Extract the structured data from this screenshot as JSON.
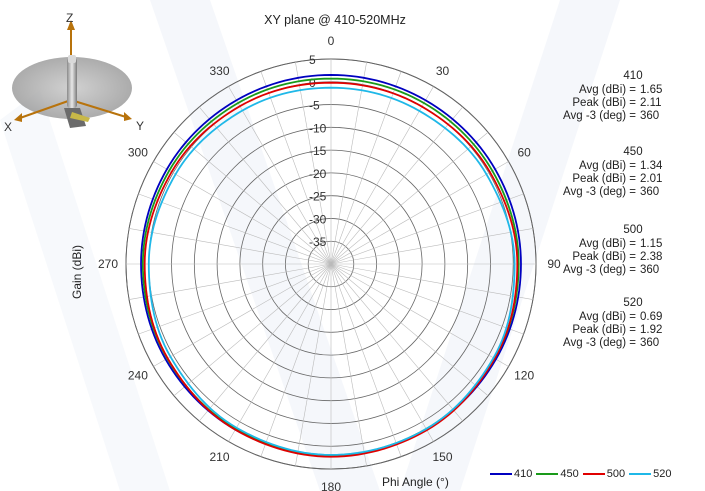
{
  "chart_data": {
    "type": "polar",
    "title": "XY plane @ 410-520MHz",
    "xlabel": "Phi  Angle (°)",
    "ylabel": "Gain  (dBi)",
    "radial_range": [
      -40,
      5
    ],
    "radial_ticks": [
      "5",
      "0",
      "-5",
      "-10",
      "-15",
      "-20",
      "-25",
      "-30",
      "-35"
    ],
    "radial_tick_values": [
      5,
      0,
      -5,
      -10,
      -15,
      -20,
      -25,
      -30,
      -35
    ],
    "angle_ticks": [
      "0",
      "30",
      "60",
      "90",
      "120",
      "150",
      "180",
      "210",
      "240",
      "270",
      "300",
      "330"
    ],
    "angle_tick_values": [
      0,
      30,
      60,
      90,
      120,
      150,
      180,
      210,
      240,
      270,
      300,
      330
    ],
    "grid": true,
    "legend_position": "bottom-right",
    "series": [
      {
        "name": "410",
        "color": "#0000c0",
        "gain_at_angles": [
          1.5,
          1.5,
          1.6,
          1.7,
          1.8,
          1.9,
          2.0,
          2.0,
          1.9,
          1.7,
          1.6,
          1.5
        ]
      },
      {
        "name": "450",
        "color": "#1a9a1a",
        "gain_at_angles": [
          0.7,
          0.8,
          0.9,
          1.2,
          1.5,
          1.8,
          2.0,
          1.8,
          1.5,
          1.3,
          1.0,
          0.8
        ]
      },
      {
        "name": "500",
        "color": "#e00000",
        "gain_at_angles": [
          -0.2,
          -0.1,
          0.3,
          0.9,
          1.5,
          2.1,
          2.3,
          2.0,
          1.4,
          0.9,
          0.4,
          0.0
        ]
      },
      {
        "name": "520",
        "color": "#1fb8e8",
        "gain_at_angles": [
          -1.3,
          -1.2,
          -0.6,
          0.3,
          1.2,
          1.8,
          1.9,
          1.5,
          0.7,
          0.0,
          -0.6,
          -1.1
        ]
      }
    ]
  },
  "stats": [
    {
      "freq": "410",
      "lines": [
        {
          "label": "Avg (dBi) =",
          "value": "1.65"
        },
        {
          "label": "Peak (dBi) =",
          "value": "2.11"
        },
        {
          "label": "Avg -3 (deg) =",
          "value": "360"
        }
      ]
    },
    {
      "freq": "450",
      "lines": [
        {
          "label": "Avg (dBi) =",
          "value": "1.34"
        },
        {
          "label": "Peak (dBi) =",
          "value": "2.01"
        },
        {
          "label": "Avg -3 (deg) =",
          "value": "360"
        }
      ]
    },
    {
      "freq": "500",
      "lines": [
        {
          "label": "Avg (dBi) =",
          "value": "1.15"
        },
        {
          "label": "Peak (dBi) =",
          "value": "2.38"
        },
        {
          "label": "Avg -3 (deg) =",
          "value": "360"
        }
      ]
    },
    {
      "freq": "520",
      "lines": [
        {
          "label": "Avg (dBi) =",
          "value": "0.69"
        },
        {
          "label": "Peak (dBi) =",
          "value": "1.92"
        },
        {
          "label": "Avg -3 (deg) =",
          "value": "360"
        }
      ]
    }
  ],
  "axes_icon": {
    "x": "X",
    "y": "Y",
    "z": "Z"
  }
}
